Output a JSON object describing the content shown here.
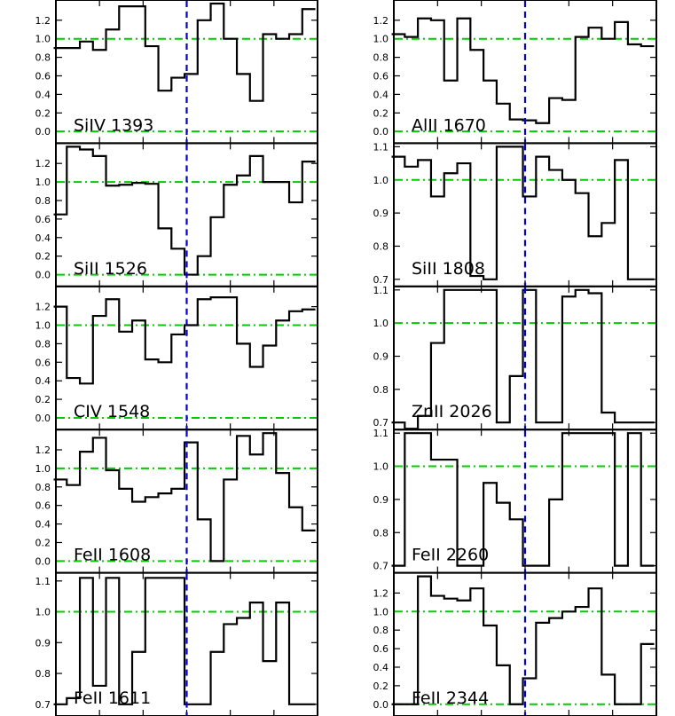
{
  "figure": {
    "x_ticks": [
      -600,
      -400,
      -200,
      0,
      200,
      400,
      600
    ],
    "styles": {
      "frame_color": "#000000",
      "step_color": "#000000",
      "guide_color": "#00cc00",
      "zero_velocity_color": "#0000dd"
    }
  },
  "chart_data": [
    {
      "type": "line",
      "line_shape": "histogram-step",
      "label": "SiIV 1393",
      "xlim": [
        -600,
        600
      ],
      "ylim": [
        -0.05,
        1.38
      ],
      "y_ticks": [
        0.0,
        0.2,
        0.4,
        0.6,
        0.8,
        1.0,
        1.2
      ],
      "y_tick_labels": [
        "0.0",
        "0.2",
        "0.4",
        "0.6",
        "0.8",
        "1.0",
        "1.2"
      ],
      "guides_y": [
        0.0,
        1.0
      ],
      "zero_velocity_x": 0,
      "x": [
        -580,
        -520,
        -460,
        -400,
        -340,
        -280,
        -220,
        -160,
        -100,
        -40,
        20,
        80,
        140,
        200,
        260,
        320,
        380,
        440,
        500,
        560
      ],
      "y": [
        0.9,
        0.9,
        0.97,
        0.88,
        1.1,
        1.35,
        1.35,
        0.92,
        0.44,
        0.58,
        0.62,
        1.2,
        1.38,
        1.0,
        0.62,
        0.33,
        1.05,
        1.0,
        1.05,
        1.32
      ]
    },
    {
      "type": "line",
      "line_shape": "histogram-step",
      "label": "SiII 1526",
      "xlim": [
        -600,
        600
      ],
      "ylim": [
        -0.05,
        1.38
      ],
      "y_ticks": [
        0.0,
        0.2,
        0.4,
        0.6,
        0.8,
        1.0,
        1.2
      ],
      "y_tick_labels": [
        "0.0",
        "0.2",
        "0.4",
        "0.6",
        "0.8",
        "1.0",
        "1.2"
      ],
      "guides_y": [
        0.0,
        1.0
      ],
      "zero_velocity_x": 0,
      "x": [
        -580,
        -520,
        -460,
        -400,
        -340,
        -280,
        -220,
        -160,
        -100,
        -40,
        20,
        80,
        140,
        200,
        260,
        320,
        380,
        440,
        500,
        560
      ],
      "y": [
        0.65,
        1.38,
        1.35,
        1.28,
        0.96,
        0.97,
        0.99,
        0.98,
        0.5,
        0.28,
        0.0,
        0.2,
        0.62,
        0.97,
        1.07,
        1.28,
        1.0,
        1.0,
        0.78,
        1.22
      ]
    },
    {
      "type": "line",
      "line_shape": "histogram-step",
      "label": "CIV 1548",
      "xlim": [
        -600,
        600
      ],
      "ylim": [
        -0.05,
        1.38
      ],
      "y_ticks": [
        0.0,
        0.2,
        0.4,
        0.6,
        0.8,
        1.0,
        1.2
      ],
      "y_tick_labels": [
        "0.0",
        "0.2",
        "0.4",
        "0.6",
        "0.8",
        "1.0",
        "1.2"
      ],
      "guides_y": [
        0.0,
        1.0
      ],
      "zero_velocity_x": 0,
      "x": [
        -580,
        -520,
        -460,
        -400,
        -340,
        -280,
        -220,
        -160,
        -100,
        -40,
        20,
        80,
        140,
        200,
        260,
        320,
        380,
        440,
        500,
        560
      ],
      "y": [
        1.2,
        0.43,
        0.37,
        1.1,
        1.28,
        0.93,
        1.05,
        0.63,
        0.6,
        0.9,
        1.0,
        1.28,
        1.3,
        1.3,
        0.8,
        0.55,
        0.78,
        1.05,
        1.15,
        1.17
      ]
    },
    {
      "type": "line",
      "line_shape": "histogram-step",
      "label": "FeII 1608",
      "xlim": [
        -600,
        600
      ],
      "ylim": [
        -0.05,
        1.38
      ],
      "y_ticks": [
        0.0,
        0.2,
        0.4,
        0.6,
        0.8,
        1.0,
        1.2
      ],
      "y_tick_labels": [
        "0.0",
        "0.2",
        "0.4",
        "0.6",
        "0.8",
        "1.0",
        "1.2"
      ],
      "guides_y": [
        0.0,
        1.0
      ],
      "zero_velocity_x": 0,
      "x": [
        -580,
        -520,
        -460,
        -400,
        -340,
        -280,
        -220,
        -160,
        -100,
        -40,
        20,
        80,
        140,
        200,
        260,
        320,
        380,
        440,
        500,
        560
      ],
      "y": [
        0.88,
        0.82,
        1.18,
        1.33,
        0.98,
        0.78,
        0.64,
        0.69,
        0.73,
        0.78,
        1.28,
        0.45,
        0.0,
        0.88,
        1.35,
        1.15,
        1.38,
        0.95,
        0.58,
        0.33
      ]
    },
    {
      "type": "line",
      "line_shape": "histogram-step",
      "label": "FeII 1611",
      "xlim": [
        -600,
        600
      ],
      "ylim": [
        0.685,
        1.115
      ],
      "y_ticks": [
        0.7,
        0.8,
        0.9,
        1.0,
        1.1
      ],
      "y_tick_labels": [
        "0.7",
        "0.8",
        "0.9",
        "1.0",
        "1.1"
      ],
      "guides_y": [
        1.0
      ],
      "zero_velocity_x": 0,
      "x": [
        -580,
        -520,
        -460,
        -400,
        -340,
        -280,
        -220,
        -160,
        -100,
        -40,
        20,
        80,
        140,
        200,
        260,
        320,
        380,
        440,
        500,
        560
      ],
      "y": [
        0.7,
        0.72,
        1.11,
        0.76,
        1.11,
        0.7,
        0.87,
        1.11,
        1.11,
        1.11,
        0.7,
        0.7,
        0.87,
        0.96,
        0.98,
        1.03,
        0.84,
        1.03,
        0.7,
        0.7
      ]
    },
    {
      "type": "line",
      "line_shape": "histogram-step",
      "label": "AlII 1670",
      "xlim": [
        -600,
        600
      ],
      "ylim": [
        -0.05,
        1.38
      ],
      "y_ticks": [
        0.0,
        0.2,
        0.4,
        0.6,
        0.8,
        1.0,
        1.2
      ],
      "y_tick_labels": [
        "0.0",
        "0.2",
        "0.4",
        "0.6",
        "0.8",
        "1.0",
        "1.2"
      ],
      "guides_y": [
        0.0,
        1.0
      ],
      "zero_velocity_x": 0,
      "x": [
        -580,
        -520,
        -460,
        -400,
        -340,
        -280,
        -220,
        -160,
        -100,
        -40,
        20,
        80,
        140,
        200,
        260,
        320,
        380,
        440,
        500,
        560
      ],
      "y": [
        1.05,
        1.02,
        1.22,
        1.2,
        0.55,
        1.22,
        0.88,
        0.55,
        0.3,
        0.13,
        0.12,
        0.09,
        0.36,
        0.34,
        1.02,
        1.12,
        1.0,
        1.18,
        0.94,
        0.92
      ]
    },
    {
      "type": "line",
      "line_shape": "histogram-step",
      "label": "SiII 1808",
      "xlim": [
        -600,
        600
      ],
      "ylim": [
        0.7,
        1.1
      ],
      "y_ticks": [
        0.7,
        0.8,
        0.9,
        1.0,
        1.1
      ],
      "y_tick_labels": [
        "0.7",
        "0.8",
        "0.9",
        "1.0",
        "1.1"
      ],
      "guides_y": [
        1.0
      ],
      "zero_velocity_x": 0,
      "x": [
        -580,
        -520,
        -460,
        -400,
        -340,
        -280,
        -220,
        -160,
        -100,
        -40,
        20,
        80,
        140,
        200,
        260,
        320,
        380,
        440,
        500,
        560
      ],
      "y": [
        1.07,
        1.04,
        1.06,
        0.95,
        1.02,
        1.05,
        0.71,
        0.7,
        1.1,
        1.1,
        0.95,
        1.07,
        1.03,
        1.0,
        0.96,
        0.83,
        0.87,
        1.06,
        0.7,
        0.7
      ]
    },
    {
      "type": "line",
      "line_shape": "histogram-step",
      "label": "ZnII 2026",
      "xlim": [
        -600,
        600
      ],
      "ylim": [
        0.7,
        1.1
      ],
      "y_ticks": [
        0.7,
        0.8,
        0.9,
        1.0,
        1.1
      ],
      "y_tick_labels": [
        "0.7",
        "0.8",
        "0.9",
        "1.0",
        "1.1"
      ],
      "guides_y": [
        1.0
      ],
      "zero_velocity_x": 0,
      "x": [
        -580,
        -520,
        -460,
        -400,
        -340,
        -280,
        -220,
        -160,
        -100,
        -40,
        20,
        80,
        140,
        200,
        260,
        320,
        380,
        440,
        500,
        560
      ],
      "y": [
        0.7,
        0.68,
        0.72,
        0.94,
        1.1,
        1.1,
        1.1,
        1.1,
        0.7,
        0.84,
        1.1,
        0.7,
        0.7,
        1.08,
        1.1,
        1.09,
        0.73,
        0.7,
        0.7,
        0.7
      ]
    },
    {
      "type": "line",
      "line_shape": "histogram-step",
      "label": "FeII 2260",
      "xlim": [
        -600,
        600
      ],
      "ylim": [
        0.7,
        1.1
      ],
      "y_ticks": [
        0.7,
        0.8,
        0.9,
        1.0,
        1.1
      ],
      "y_tick_labels": [
        "0.7",
        "0.8",
        "0.9",
        "1.0",
        "1.1"
      ],
      "guides_y": [
        1.0
      ],
      "zero_velocity_x": 0,
      "x": [
        -580,
        -520,
        -460,
        -400,
        -340,
        -280,
        -220,
        -160,
        -100,
        -40,
        20,
        80,
        140,
        200,
        260,
        320,
        380,
        440,
        500,
        560
      ],
      "y": [
        0.7,
        1.1,
        1.1,
        1.02,
        1.02,
        0.7,
        0.7,
        0.95,
        0.89,
        0.84,
        0.7,
        0.7,
        0.9,
        1.1,
        1.1,
        1.1,
        1.1,
        0.7,
        1.1,
        0.7
      ]
    },
    {
      "type": "line",
      "line_shape": "histogram-step",
      "label": "FeII 2344",
      "xlim": [
        -600,
        600
      ],
      "ylim": [
        -0.05,
        1.38
      ],
      "y_ticks": [
        0.0,
        0.2,
        0.4,
        0.6,
        0.8,
        1.0,
        1.2
      ],
      "y_tick_labels": [
        "0.0",
        "0.2",
        "0.4",
        "0.6",
        "0.8",
        "1.0",
        "1.2"
      ],
      "guides_y": [
        0.0,
        1.0
      ],
      "zero_velocity_x": 0,
      "x": [
        -580,
        -520,
        -460,
        -400,
        -340,
        -280,
        -220,
        -160,
        -100,
        -40,
        20,
        80,
        140,
        200,
        260,
        320,
        380,
        440,
        500,
        560
      ],
      "y": [
        0.0,
        0.0,
        1.38,
        1.17,
        1.14,
        1.12,
        1.25,
        0.85,
        0.42,
        0.0,
        0.28,
        0.88,
        0.93,
        1.0,
        1.05,
        1.25,
        0.32,
        0.0,
        0.0,
        0.65
      ]
    }
  ]
}
